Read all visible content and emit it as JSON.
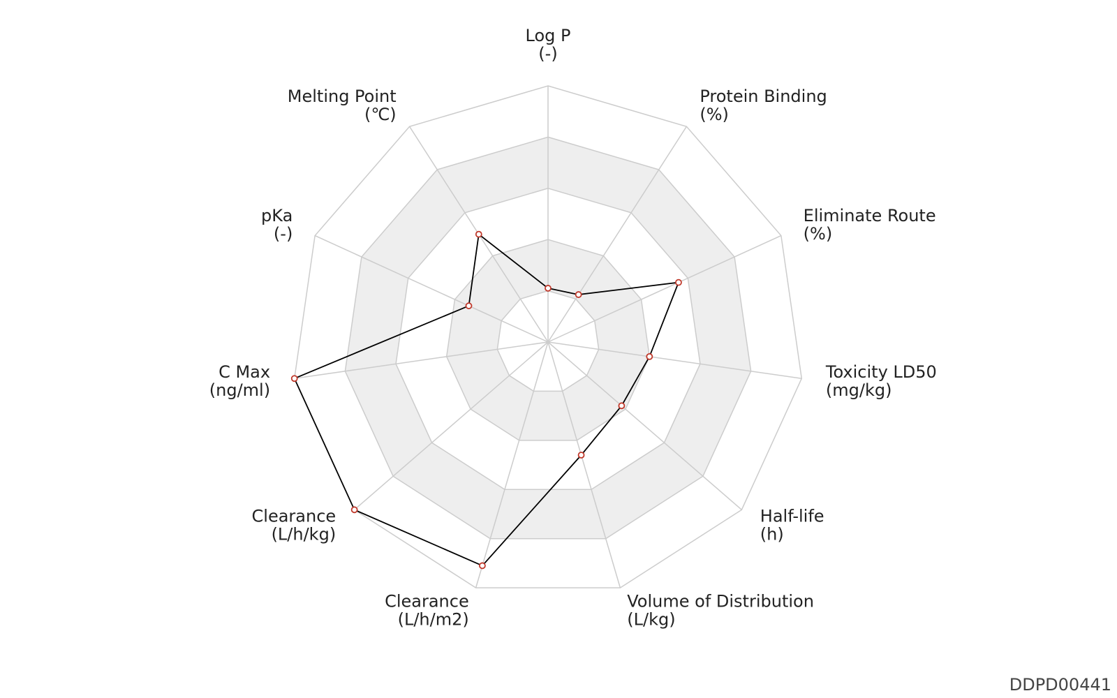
{
  "chart_data": {
    "type": "radar",
    "categories": [
      "Log P",
      "Protein Binding",
      "Eliminate Route",
      "Toxicity LD50",
      "Half-life",
      "Volume of Distribution",
      "Clearance",
      "Clearance",
      "C Max",
      "pKa",
      "Melting Point"
    ],
    "units": [
      "(-)",
      "(%)",
      "(%)",
      "(mg/kg)",
      "(h)",
      "(L/kg)",
      "(L/h/m2)",
      "(L/h/kg)",
      "(ng/ml)",
      "(-)",
      "(℃)"
    ],
    "values": [
      0.21,
      0.22,
      0.56,
      0.4,
      0.38,
      0.46,
      0.91,
      1.0,
      1.0,
      0.34,
      0.5
    ],
    "rlim": [
      0,
      1
    ],
    "rticks": [
      0.2,
      0.4,
      0.6,
      0.8,
      1.0
    ],
    "line_color": "#000000",
    "marker_color": "#c0392b",
    "grid_color": "#cccccc",
    "band_colors": [
      "#ffffff",
      "#eeeeee"
    ],
    "footer": "DDPD00441"
  }
}
